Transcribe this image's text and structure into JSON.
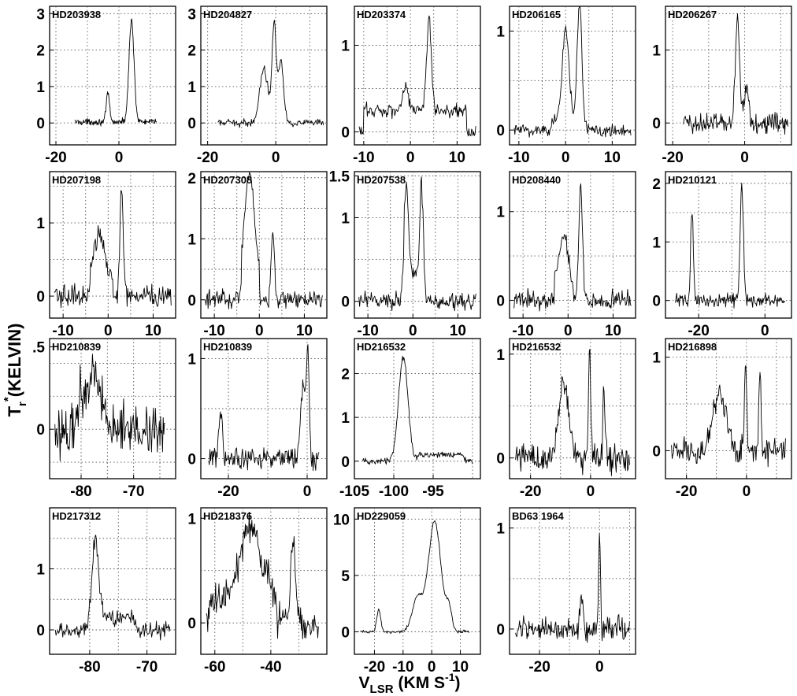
{
  "figure": {
    "ylabel": "T",
    "ylabel_sub": "r",
    "ylabel_sup": "*",
    "ylabel_unit": "(KELVIN)",
    "xlabel": "V",
    "xlabel_sub": "LSR",
    "xlabel_unit": "(KM S",
    "xlabel_sup": "-1",
    "xlabel_close": ")"
  },
  "chart_data": [
    {
      "type": "line",
      "title": "HD203938",
      "xlim": [
        -22,
        18
      ],
      "ylim": [
        -0.6,
        3.2
      ],
      "xticks": [
        -20,
        0
      ],
      "yticks": [
        0,
        1,
        2,
        3
      ],
      "yticklabels": [
        "0",
        "1",
        "2",
        "3"
      ],
      "grid_y": [
        0,
        1,
        2,
        3
      ],
      "grid_x": [
        -20,
        -10,
        0,
        10
      ],
      "x_range": [
        -14,
        12
      ],
      "baseline": 0.03,
      "noise": 0.06,
      "peaks": [
        [
          -3.5,
          0.8,
          0.5
        ],
        [
          4,
          2.8,
          0.8
        ]
      ],
      "plateaus": []
    },
    {
      "type": "line",
      "title": "HD204827",
      "xlim": [
        -22,
        15
      ],
      "ylim": [
        -0.6,
        3.2
      ],
      "xticks": [
        -20,
        0
      ],
      "yticks": [
        0,
        1,
        2,
        3
      ],
      "yticklabels": [
        "0",
        "1",
        "2",
        "3"
      ],
      "grid_y": [
        0,
        1,
        2,
        3
      ],
      "grid_x": [
        -20,
        -10,
        0,
        10
      ],
      "x_range": [
        -17,
        14
      ],
      "baseline": 0.0,
      "noise": 0.07,
      "peaks": [
        [
          -3.5,
          1.5,
          1.2
        ],
        [
          -0.5,
          2.7,
          0.6
        ],
        [
          1.5,
          1.7,
          0.8
        ]
      ],
      "plateaus": []
    },
    {
      "type": "line",
      "title": "HD203374",
      "xlim": [
        -12,
        15
      ],
      "ylim": [
        -0.15,
        1.45
      ],
      "xticks": [
        -10,
        0,
        10
      ],
      "yticks": [
        0,
        1
      ],
      "yticklabels": [
        "0",
        "1"
      ],
      "grid_y": [
        0,
        0.5,
        1
      ],
      "grid_x": [
        -10,
        -5,
        0,
        5,
        10
      ],
      "x_range": [
        -11,
        14
      ],
      "baseline": 0.0,
      "noise": 0.06,
      "peaks": [
        [
          -1,
          0.3,
          0.6
        ],
        [
          4,
          1.05,
          0.5
        ]
      ],
      "plateaus": [
        [
          -10,
          12,
          0.25
        ]
      ]
    },
    {
      "type": "line",
      "title": "HD206165",
      "xlim": [
        -12,
        15
      ],
      "ylim": [
        -0.15,
        1.25
      ],
      "xticks": [
        -10,
        0,
        10
      ],
      "yticks": [
        0,
        1
      ],
      "yticklabels": [
        "0",
        "1"
      ],
      "grid_y": [
        0,
        0.5,
        1
      ],
      "grid_x": [
        -10,
        -5,
        0,
        5,
        10
      ],
      "x_range": [
        -11,
        14
      ],
      "baseline": 0.0,
      "noise": 0.05,
      "peaks": [
        [
          0,
          0.95,
          0.7
        ],
        [
          3,
          1.2,
          0.5
        ]
      ],
      "plateaus": [
        [
          -3,
          3.5,
          0.1
        ]
      ]
    },
    {
      "type": "line",
      "title": "HD206267",
      "xlim": [
        -22,
        13
      ],
      "ylim": [
        -0.3,
        1.6
      ],
      "xticks": [
        -20,
        0
      ],
      "yticks": [
        0,
        1
      ],
      "yticklabels": [
        "0",
        "1"
      ],
      "grid_y": [
        0,
        0.5,
        1,
        1.5
      ],
      "grid_x": [
        -20,
        -10,
        0,
        10
      ],
      "x_range": [
        -17,
        12
      ],
      "baseline": 0.0,
      "noise": 0.1,
      "peaks": [
        [
          -2,
          1.45,
          0.6
        ],
        [
          0.5,
          0.5,
          0.6
        ]
      ],
      "plateaus": []
    },
    {
      "type": "line",
      "title": "HD207198",
      "xlim": [
        -13,
        15
      ],
      "ylim": [
        -0.3,
        1.7
      ],
      "xticks": [
        -10,
        0,
        10
      ],
      "yticks": [
        0,
        1
      ],
      "yticklabels": [
        "0",
        "1"
      ],
      "grid_y": [
        0,
        0.5,
        1,
        1.5
      ],
      "grid_x": [
        -10,
        -5,
        0,
        5,
        10
      ],
      "x_range": [
        -12,
        14
      ],
      "baseline": 0.0,
      "noise": 0.1,
      "peaks": [
        [
          -2,
          0.65,
          1.2
        ],
        [
          3,
          1.55,
          0.35
        ]
      ],
      "plateaus": [
        [
          -4,
          1,
          0.2
        ]
      ]
    },
    {
      "type": "line",
      "title": "HD207308",
      "xlim": [
        -13,
        15
      ],
      "ylim": [
        -0.3,
        2.1
      ],
      "xticks": [
        -10,
        0,
        10
      ],
      "yticks": [
        0,
        1,
        2
      ],
      "yticklabels": [
        "0",
        "1",
        "2"
      ],
      "grid_y": [
        0,
        0.5,
        1,
        1.5,
        2
      ],
      "grid_x": [
        -10,
        -5,
        0,
        5,
        10
      ],
      "x_range": [
        -12,
        14
      ],
      "baseline": 0.0,
      "noise": 0.1,
      "peaks": [
        [
          -2.2,
          1.6,
          1.0
        ],
        [
          3,
          1.15,
          0.35
        ]
      ],
      "plateaus": [
        [
          -4,
          0,
          0.5
        ]
      ]
    },
    {
      "type": "line",
      "title": "HD207538",
      "xlim": [
        -13,
        15
      ],
      "ylim": [
        -0.2,
        1.55
      ],
      "xticks": [
        -10,
        0,
        10
      ],
      "yticks": [
        0,
        1,
        1.5
      ],
      "yticklabels": [
        "0",
        "1",
        "1.5"
      ],
      "grid_y": [
        0,
        0.5,
        1,
        1.5
      ],
      "grid_x": [
        -10,
        -5,
        0,
        5,
        10
      ],
      "x_range": [
        -12,
        14
      ],
      "baseline": 0.0,
      "noise": 0.07,
      "peaks": [
        [
          -1.5,
          1.1,
          0.5
        ],
        [
          2,
          1.3,
          0.4
        ]
      ],
      "plateaus": [
        [
          -2,
          2,
          0.3
        ]
      ]
    },
    {
      "type": "line",
      "title": "HD208440",
      "xlim": [
        -13,
        15
      ],
      "ylim": [
        -0.2,
        1.45
      ],
      "xticks": [
        -10,
        0,
        10
      ],
      "yticks": [
        0,
        1
      ],
      "yticklabels": [
        "0",
        "1"
      ],
      "grid_y": [
        0,
        0.5,
        1
      ],
      "grid_x": [
        -10,
        -5,
        0,
        5,
        10
      ],
      "x_range": [
        -12,
        14
      ],
      "baseline": 0.0,
      "noise": 0.07,
      "peaks": [
        [
          -1,
          0.55,
          0.9
        ],
        [
          2.8,
          1.3,
          0.4
        ]
      ],
      "plateaus": [
        [
          -3,
          1,
          0.2
        ]
      ]
    },
    {
      "type": "line",
      "title": "HD210121",
      "xlim": [
        -30,
        8
      ],
      "ylim": [
        -0.3,
        2.2
      ],
      "xticks": [
        -20,
        0
      ],
      "yticks": [
        0,
        1,
        2
      ],
      "yticklabels": [
        "0",
        "1",
        "2"
      ],
      "grid_y": [
        0,
        0.5,
        1,
        1.5,
        2
      ],
      "grid_x": [
        -20,
        -10,
        0
      ],
      "x_range": [
        -27,
        6
      ],
      "baseline": 0.0,
      "noise": 0.08,
      "peaks": [
        [
          -22,
          1.55,
          0.4
        ],
        [
          -7,
          1.95,
          0.5
        ]
      ],
      "plateaus": []
    },
    {
      "type": "line",
      "title": "HD210839",
      "xlim": [
        -86,
        -62
      ],
      "ylim": [
        -0.3,
        0.55
      ],
      "xticks": [
        -80,
        -70
      ],
      "yticks": [
        0,
        0.5
      ],
      "yticklabels": [
        "0",
        ".5"
      ],
      "grid_y": [
        -0.2,
        0,
        0.2,
        0.4
      ],
      "grid_x": [
        -80,
        -75,
        -70,
        -65
      ],
      "x_range": [
        -85,
        -64
      ],
      "baseline": 0.0,
      "noise": 0.11,
      "peaks": [
        [
          -77.5,
          0.32,
          1.3
        ],
        [
          -80,
          0.15,
          0.8
        ]
      ],
      "plateaus": []
    },
    {
      "type": "line",
      "title": "HD210839",
      "xlim": [
        -27,
        5
      ],
      "ylim": [
        -0.2,
        1.2
      ],
      "xticks": [
        -20,
        0
      ],
      "yticks": [
        0,
        1
      ],
      "yticklabels": [
        "0",
        "1"
      ],
      "grid_y": [
        0,
        0.5,
        1
      ],
      "grid_x": [
        -20,
        -10,
        0
      ],
      "x_range": [
        -25,
        3
      ],
      "baseline": 0.0,
      "noise": 0.07,
      "peaks": [
        [
          -22,
          0.45,
          0.5
        ],
        [
          -1,
          0.75,
          0.6
        ],
        [
          0.2,
          1.05,
          0.35
        ]
      ],
      "plateaus": []
    },
    {
      "type": "line",
      "title": "HD216532",
      "xlim": [
        -105,
        -89
      ],
      "ylim": [
        -0.4,
        2.8
      ],
      "xticks": [
        -105,
        -100,
        -95
      ],
      "yticks": [
        0,
        1,
        2
      ],
      "yticklabels": [
        "0",
        "1",
        "2"
      ],
      "grid_y": [
        0,
        1,
        2
      ],
      "grid_x": [
        -100,
        -95,
        -90
      ],
      "x_range": [
        -104,
        -90
      ],
      "baseline": 0.0,
      "noise": 0.05,
      "peaks": [
        [
          -98.8,
          2.35,
          0.6
        ]
      ],
      "plateaus": [
        [
          -97,
          -91,
          0.15
        ]
      ]
    },
    {
      "type": "line",
      "title": "HD216532",
      "xlim": [
        -27,
        15
      ],
      "ylim": [
        -0.2,
        1.15
      ],
      "xticks": [
        -20,
        0
      ],
      "yticks": [
        0,
        1
      ],
      "yticklabels": [
        "0",
        "1"
      ],
      "grid_y": [
        0,
        0.5,
        1
      ],
      "grid_x": [
        -20,
        -10,
        0,
        10
      ],
      "x_range": [
        -25,
        13
      ],
      "baseline": 0.0,
      "noise": 0.1,
      "peaks": [
        [
          -9,
          0.75,
          1.6
        ],
        [
          -0.3,
          1.0,
          0.35
        ],
        [
          4.5,
          0.7,
          0.35
        ]
      ],
      "plateaus": []
    },
    {
      "type": "line",
      "title": "HD216898",
      "xlim": [
        -27,
        15
      ],
      "ylim": [
        -0.3,
        1.2
      ],
      "xticks": [
        -20,
        0
      ],
      "yticks": [
        0,
        1
      ],
      "yticklabels": [
        "0",
        "1"
      ],
      "grid_y": [
        0,
        0.5,
        1
      ],
      "grid_x": [
        -20,
        -10,
        0,
        10
      ],
      "x_range": [
        -25,
        13
      ],
      "baseline": 0.0,
      "noise": 0.1,
      "peaks": [
        [
          -9,
          0.6,
          2.2
        ],
        [
          -0.3,
          0.98,
          0.35
        ],
        [
          4.5,
          0.85,
          0.35
        ]
      ],
      "plateaus": []
    },
    {
      "type": "line",
      "title": "HD217312",
      "xlim": [
        -87,
        -65
      ],
      "ylim": [
        -0.4,
        2.0
      ],
      "xticks": [
        -80,
        -70
      ],
      "yticks": [
        0,
        1
      ],
      "yticklabels": [
        "0",
        "1"
      ],
      "grid_y": [
        0,
        0.5,
        1,
        1.5
      ],
      "grid_x": [
        -80,
        -75,
        -70
      ],
      "x_range": [
        -86,
        -66
      ],
      "baseline": 0.0,
      "noise": 0.1,
      "peaks": [
        [
          -79,
          1.5,
          0.6
        ]
      ],
      "plateaus": [
        [
          -78,
          -72,
          0.2
        ]
      ]
    },
    {
      "type": "line",
      "title": "HD218376",
      "xlim": [
        -65,
        -20
      ],
      "ylim": [
        -0.3,
        1.1
      ],
      "xticks": [
        -60,
        -40
      ],
      "yticks": [
        0,
        1
      ],
      "yticklabels": [
        "0",
        "1"
      ],
      "grid_y": [
        0,
        0.5,
        1
      ],
      "grid_x": [
        -60,
        -50,
        -40,
        -30
      ],
      "x_range": [
        -63,
        -23
      ],
      "baseline": 0.0,
      "noise": 0.12,
      "peaks": [
        [
          -47,
          0.7,
          3.5
        ],
        [
          -32,
          0.8,
          0.8
        ]
      ],
      "plateaus": [
        [
          -62,
          -38,
          0.25
        ]
      ]
    },
    {
      "type": "line",
      "title": "HD229059",
      "xlim": [
        -27,
        17
      ],
      "ylim": [
        -2.0,
        11.0
      ],
      "xticks": [
        -20,
        -10,
        0,
        10
      ],
      "yticks": [
        0,
        5,
        10
      ],
      "yticklabels": [
        "0",
        "5",
        "10"
      ],
      "grid_y": [
        0,
        5,
        10
      ],
      "grid_x": [
        -20,
        -10,
        0,
        10
      ],
      "x_range": [
        -25,
        13
      ],
      "baseline": 0.0,
      "noise": 0.1,
      "peaks": [
        [
          -18.5,
          2.0,
          0.7
        ],
        [
          -5,
          3.0,
          1.8
        ],
        [
          1,
          9.8,
          2.2
        ],
        [
          6,
          2.0,
          1.0
        ]
      ],
      "plateaus": []
    },
    {
      "type": "line",
      "title": "BD63 1964",
      "xlim": [
        -30,
        12
      ],
      "ylim": [
        -0.25,
        1.2
      ],
      "xticks": [
        -20,
        0
      ],
      "yticks": [
        0,
        1
      ],
      "yticklabels": [
        "0",
        "1"
      ],
      "grid_y": [
        0,
        0.5,
        1
      ],
      "grid_x": [
        -20,
        -10,
        0,
        10
      ],
      "x_range": [
        -28,
        10
      ],
      "baseline": 0.0,
      "noise": 0.08,
      "peaks": [
        [
          -6,
          0.35,
          0.5
        ],
        [
          0,
          1.0,
          0.3
        ]
      ],
      "plateaus": []
    }
  ]
}
